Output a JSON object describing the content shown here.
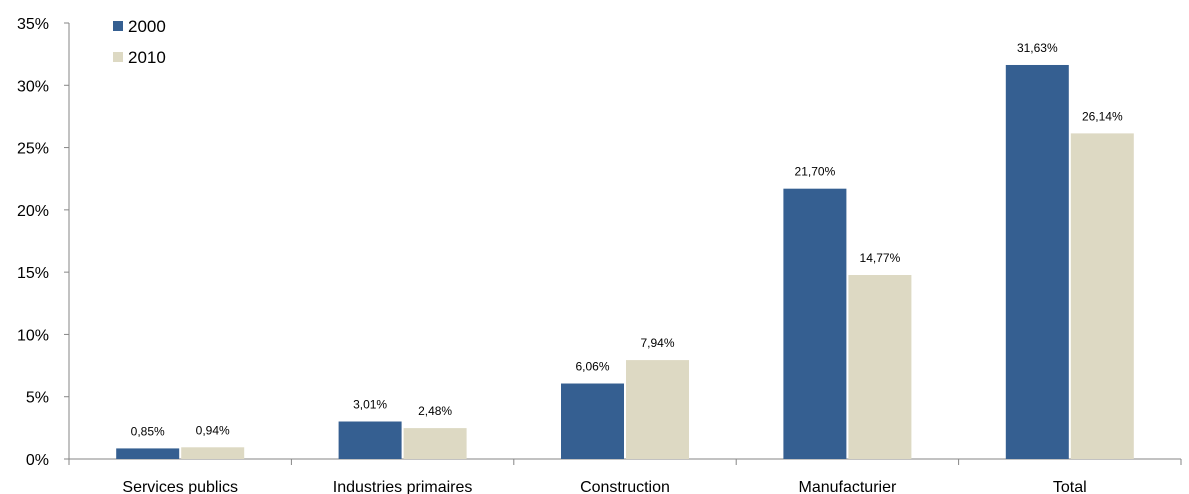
{
  "chart_data": {
    "type": "bar",
    "categories": [
      "Services publics",
      "Industries primaires",
      "Construction",
      "Manufacturier",
      "Total"
    ],
    "series": [
      {
        "name": "2000",
        "color": "#355f91",
        "values": [
          0.85,
          3.01,
          6.06,
          21.7,
          31.63
        ],
        "labels": [
          "0,85%",
          "3,01%",
          "6,06%",
          "21,70%",
          "31,63%"
        ]
      },
      {
        "name": "2010",
        "color": "#ddd9c3",
        "values": [
          0.94,
          2.48,
          7.94,
          14.77,
          26.14
        ],
        "labels": [
          "0,94%",
          "2,48%",
          "7,94%",
          "14,77%",
          "26,14%"
        ]
      }
    ],
    "ylim": [
      0,
      35
    ],
    "yticks": [
      0,
      5,
      10,
      15,
      20,
      25,
      30,
      35
    ],
    "ytick_labels": [
      "0%",
      "5%",
      "10%",
      "15%",
      "20%",
      "25%",
      "30%",
      "35%"
    ],
    "grid": false,
    "legend_position": "top-left"
  }
}
